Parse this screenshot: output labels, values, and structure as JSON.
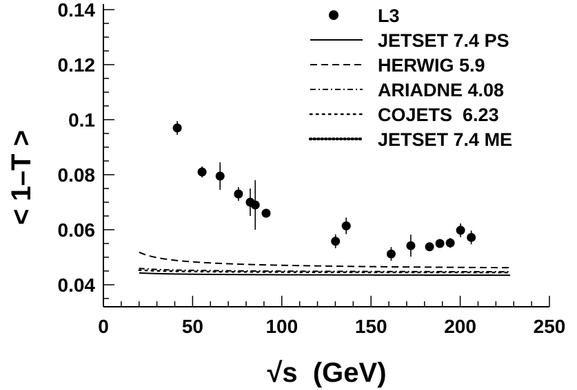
{
  "chart_data": {
    "type": "line",
    "xlabel": "√s  (GeV)",
    "ylabel": "< 1–T >",
    "xlim": [
      0,
      250
    ],
    "ylim": [
      0.032,
      0.142
    ],
    "x_ticks": [
      0,
      50,
      100,
      150,
      200,
      250
    ],
    "x_tick_labels": [
      "0",
      "50",
      "100",
      "150",
      "200",
      "250"
    ],
    "y_ticks": [
      0.04,
      0.06,
      0.08,
      0.1,
      0.12,
      0.14
    ],
    "y_tick_labels": [
      "0.04",
      "0.06",
      "0.08",
      "0.1",
      "0.12",
      "0.14"
    ],
    "grid": false,
    "legend_position": "top-right",
    "data_series": {
      "name": "L3",
      "points": [
        {
          "x": 41.4,
          "y": 0.097,
          "err": 0.0025
        },
        {
          "x": 55.3,
          "y": 0.081,
          "err": 0.002
        },
        {
          "x": 65.4,
          "y": 0.0795,
          "err": 0.005
        },
        {
          "x": 75.7,
          "y": 0.073,
          "err": 0.0025
        },
        {
          "x": 82.3,
          "y": 0.07,
          "err": 0.005
        },
        {
          "x": 85.1,
          "y": 0.069,
          "err": 0.009
        },
        {
          "x": 91.2,
          "y": 0.066,
          "err": 0.0008
        },
        {
          "x": 130.1,
          "y": 0.0558,
          "err": 0.0025
        },
        {
          "x": 136.1,
          "y": 0.0614,
          "err": 0.003
        },
        {
          "x": 161.3,
          "y": 0.0512,
          "err": 0.0025
        },
        {
          "x": 172.3,
          "y": 0.0542,
          "err": 0.004
        },
        {
          "x": 182.8,
          "y": 0.0538,
          "err": 0.0015
        },
        {
          "x": 188.6,
          "y": 0.055,
          "err": 0.0012
        },
        {
          "x": 194.4,
          "y": 0.0552,
          "err": 0.0018
        },
        {
          "x": 200.2,
          "y": 0.0598,
          "err": 0.0025
        },
        {
          "x": 206.2,
          "y": 0.0572,
          "err": 0.0025
        }
      ]
    },
    "series": [
      {
        "name": "JETSET 7.4 PS",
        "style": "solid",
        "a": 0.0418,
        "b": 0.00102,
        "c": 2.7,
        "x": [
          20,
          228
        ]
      },
      {
        "name": "HERWIG 5.9",
        "style": "dashed",
        "a": 0.0418,
        "b": 0.0016,
        "c": 5.5,
        "x": [
          20,
          228
        ]
      },
      {
        "name": "ARIADNE 4.08",
        "style": "dashdot",
        "a": 0.0428,
        "b": 0.00105,
        "c": 3.3,
        "x": [
          20,
          228
        ]
      },
      {
        "name": "COJETS  6.23",
        "style": "dotted-sparse",
        "a": 0.0428,
        "b": 0.00096,
        "c": 2.9,
        "x": [
          20,
          228
        ]
      },
      {
        "name": "JETSET 7.4 ME",
        "style": "dotted",
        "a": 0.03,
        "b": 0.018,
        "c": 11.0,
        "x": [
          20,
          228
        ]
      }
    ],
    "curve_form": "y = a + b * exp(c / ln(x))"
  }
}
